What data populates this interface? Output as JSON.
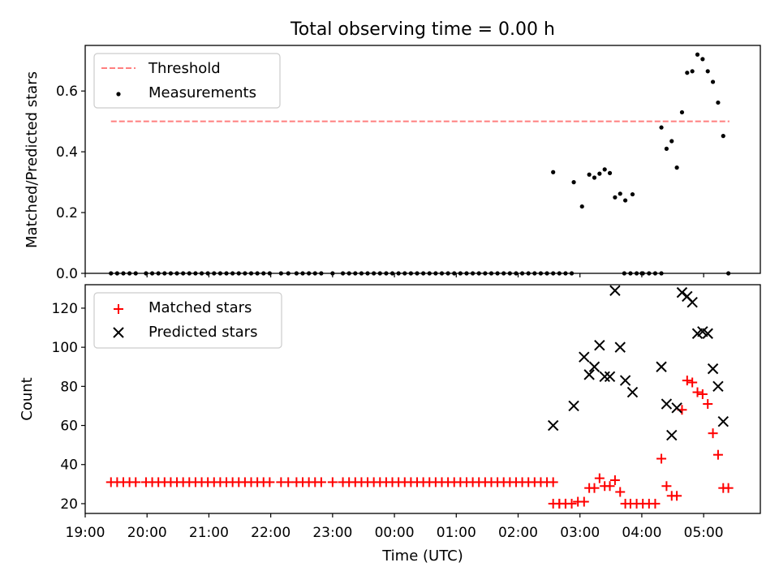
{
  "title": "Total observing time = 0.00 h",
  "chart_data": [
    {
      "type": "scatter",
      "ylabel": "Matched/Predicted stars",
      "ylim": [
        0,
        0.75
      ],
      "yticks": [
        0.0,
        0.2,
        0.4,
        0.6
      ],
      "ytick_labels": [
        "0.0",
        "0.2",
        "0.4",
        "0.6"
      ],
      "legend": {
        "placement": "upper-left",
        "entries": [
          "Threshold",
          "Measurements"
        ]
      },
      "threshold": {
        "name": "Threshold",
        "value": 0.5,
        "x_start": "19:25",
        "x_end": "05:25",
        "color": "#ff7f7f",
        "style": "dashed"
      },
      "measurements": {
        "name": "Measurements",
        "color": "#000000",
        "x": [
          "19:25",
          "19:31",
          "19:37",
          "19:43",
          "19:49",
          "19:59",
          "20:05",
          "20:11",
          "20:17",
          "20:23",
          "20:29",
          "20:35",
          "20:41",
          "20:47",
          "20:53",
          "20:59",
          "21:05",
          "21:11",
          "21:17",
          "21:23",
          "21:29",
          "21:35",
          "21:41",
          "21:47",
          "21:53",
          "21:59",
          "22:10",
          "22:17",
          "22:25",
          "22:31",
          "22:37",
          "22:43",
          "22:49",
          "23:00",
          "23:10",
          "23:16",
          "23:22",
          "23:28",
          "23:34",
          "23:40",
          "23:46",
          "23:52",
          "23:58",
          "00:04",
          "00:10",
          "00:16",
          "00:22",
          "00:28",
          "00:34",
          "00:40",
          "00:46",
          "00:52",
          "00:58",
          "01:04",
          "01:10",
          "01:16",
          "01:22",
          "01:28",
          "01:34",
          "01:40",
          "01:46",
          "01:52",
          "01:58",
          "02:04",
          "02:10",
          "02:16",
          "02:22",
          "02:28",
          "02:34",
          "02:40",
          "02:46",
          "02:52",
          "03:43",
          "03:49",
          "03:55",
          "04:01",
          "04:07",
          "04:13",
          "04:19",
          "05:24",
          "02:34",
          "02:54",
          "03:02",
          "03:09",
          "03:14",
          "03:19",
          "03:24",
          "03:29",
          "03:34",
          "03:39",
          "03:44",
          "03:51",
          "04:00",
          "04:19",
          "04:24",
          "04:29",
          "04:34",
          "04:39",
          "04:44",
          "04:49",
          "04:54",
          "04:59",
          "05:04",
          "05:09",
          "05:14",
          "05:19"
        ],
        "y": [
          0,
          0,
          0,
          0,
          0,
          0,
          0,
          0,
          0,
          0,
          0,
          0,
          0,
          0,
          0,
          0,
          0,
          0,
          0,
          0,
          0,
          0,
          0,
          0,
          0,
          0,
          0,
          0,
          0,
          0,
          0,
          0,
          0,
          0,
          0,
          0,
          0,
          0,
          0,
          0,
          0,
          0,
          0,
          0,
          0,
          0,
          0,
          0,
          0,
          0,
          0,
          0,
          0,
          0,
          0,
          0,
          0,
          0,
          0,
          0,
          0,
          0,
          0,
          0,
          0,
          0,
          0,
          0,
          0,
          0,
          0,
          0,
          0,
          0,
          0,
          0,
          0,
          0,
          0,
          0,
          0.333,
          0.3,
          0.22,
          0.325,
          0.315,
          0.328,
          0.342,
          0.33,
          0.25,
          0.262,
          0.24,
          0.26,
          0.0,
          0.48,
          0.41,
          0.435,
          0.348,
          0.53,
          0.66,
          0.665,
          0.72,
          0.705,
          0.665,
          0.63,
          0.562,
          0.452
        ]
      }
    },
    {
      "type": "scatter",
      "xlabel": "Time (UTC)",
      "ylabel": "Count",
      "ylim": [
        15,
        132
      ],
      "yticks": [
        20,
        40,
        60,
        80,
        100,
        120
      ],
      "xrange": [
        "19:00",
        "05:55"
      ],
      "xticks": [
        "19:00",
        "20:00",
        "21:00",
        "22:00",
        "23:00",
        "00:00",
        "01:00",
        "02:00",
        "03:00",
        "04:00",
        "05:00"
      ],
      "legend": {
        "placement": "upper-left",
        "entries": [
          "Matched stars",
          "Predicted stars"
        ]
      },
      "matched": {
        "name": "Matched stars",
        "color": "#ff0000",
        "marker": "+",
        "x": [
          "19:25",
          "19:31",
          "19:37",
          "19:43",
          "19:49",
          "19:59",
          "20:05",
          "20:11",
          "20:17",
          "20:23",
          "20:29",
          "20:35",
          "20:41",
          "20:47",
          "20:53",
          "20:59",
          "21:05",
          "21:11",
          "21:17",
          "21:23",
          "21:29",
          "21:35",
          "21:41",
          "21:47",
          "21:53",
          "21:59",
          "22:10",
          "22:17",
          "22:25",
          "22:31",
          "22:37",
          "22:43",
          "22:49",
          "23:00",
          "23:10",
          "23:16",
          "23:22",
          "23:28",
          "23:34",
          "23:40",
          "23:46",
          "23:52",
          "23:58",
          "00:04",
          "00:10",
          "00:16",
          "00:22",
          "00:28",
          "00:34",
          "00:40",
          "00:46",
          "00:52",
          "00:58",
          "01:04",
          "01:10",
          "01:16",
          "01:22",
          "01:28",
          "01:34",
          "01:40",
          "01:46",
          "01:52",
          "01:58",
          "02:04",
          "02:10",
          "02:16",
          "02:22",
          "02:28",
          "02:34",
          "02:40",
          "02:46",
          "02:52",
          "02:58",
          "03:04",
          "03:09",
          "03:14",
          "03:19",
          "03:24",
          "03:29",
          "03:34",
          "03:39",
          "03:44",
          "03:49",
          "03:55",
          "04:01",
          "04:07",
          "04:13",
          "04:19",
          "04:24",
          "04:29",
          "04:34",
          "04:39",
          "04:44",
          "04:49",
          "04:54",
          "04:59",
          "05:04",
          "05:09",
          "05:14",
          "05:19",
          "05:24",
          "02:34",
          "02:40",
          "02:46"
        ],
        "y": [
          31,
          31,
          31,
          31,
          31,
          31,
          31,
          31,
          31,
          31,
          31,
          31,
          31,
          31,
          31,
          31,
          31,
          31,
          31,
          31,
          31,
          31,
          31,
          31,
          31,
          31,
          31,
          31,
          31,
          31,
          31,
          31,
          31,
          31,
          31,
          31,
          31,
          31,
          31,
          31,
          31,
          31,
          31,
          31,
          31,
          31,
          31,
          31,
          31,
          31,
          31,
          31,
          31,
          31,
          31,
          31,
          31,
          31,
          31,
          31,
          31,
          31,
          31,
          31,
          31,
          31,
          31,
          31,
          20,
          20,
          20,
          20,
          21,
          21,
          28,
          28,
          33,
          29,
          29,
          32,
          26,
          20,
          20,
          20,
          20,
          20,
          20,
          43,
          29,
          24,
          24,
          68,
          83,
          82,
          77,
          76,
          71,
          56,
          45,
          28,
          28,
          31,
          20,
          20
        ]
      },
      "predicted": {
        "name": "Predicted stars",
        "color": "#000000",
        "marker": "x",
        "x": [
          "02:34",
          "02:54",
          "03:04",
          "03:09",
          "03:14",
          "03:19",
          "03:24",
          "03:29",
          "03:34",
          "03:39",
          "03:44",
          "03:51",
          "04:19",
          "04:24",
          "04:29",
          "04:34",
          "04:39",
          "04:44",
          "04:49",
          "04:54",
          "04:59",
          "05:04",
          "05:09",
          "05:14",
          "05:19"
        ],
        "y": [
          60,
          70,
          95,
          86,
          90,
          101,
          85,
          85,
          129,
          100,
          83,
          77,
          90,
          71,
          55,
          69,
          128,
          126,
          123,
          107,
          108,
          107,
          89,
          80,
          62
        ]
      }
    }
  ]
}
